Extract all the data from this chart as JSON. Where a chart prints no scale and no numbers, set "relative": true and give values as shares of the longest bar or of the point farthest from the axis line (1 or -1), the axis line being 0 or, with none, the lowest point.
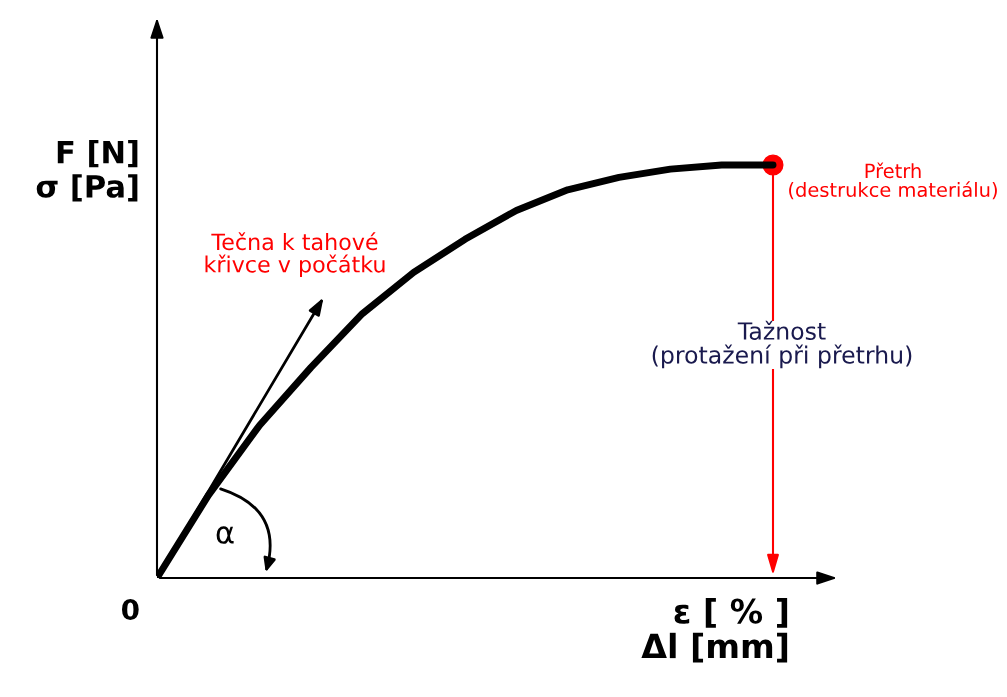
{
  "chart_data": {
    "type": "line",
    "relative": true,
    "ylabel": "F [N]\nσ [Pa]",
    "xlabel": "ε [ % ]\nΔl [mm]",
    "categories": [
      null,
      null,
      null,
      null,
      null,
      null,
      null,
      null,
      null,
      null,
      null,
      null,
      null
    ],
    "series": [
      {
        "color": "#000000",
        "marker": "none",
        "values": [
          0,
          0.2,
          0.37,
          0.51,
          0.64,
          0.74,
          0.82,
          0.89,
          0.94,
          0.97,
          0.99,
          1.0,
          1.0
        ]
      }
    ],
    "annotations": [
      "0",
      "Přetrh\n(destrukce materiálu)",
      "Tečna k tahové\nkřivce v počátku",
      "Tažnost\n(protažení při přetrhu)",
      "α"
    ],
    "grid": false,
    "legend": false
  }
}
